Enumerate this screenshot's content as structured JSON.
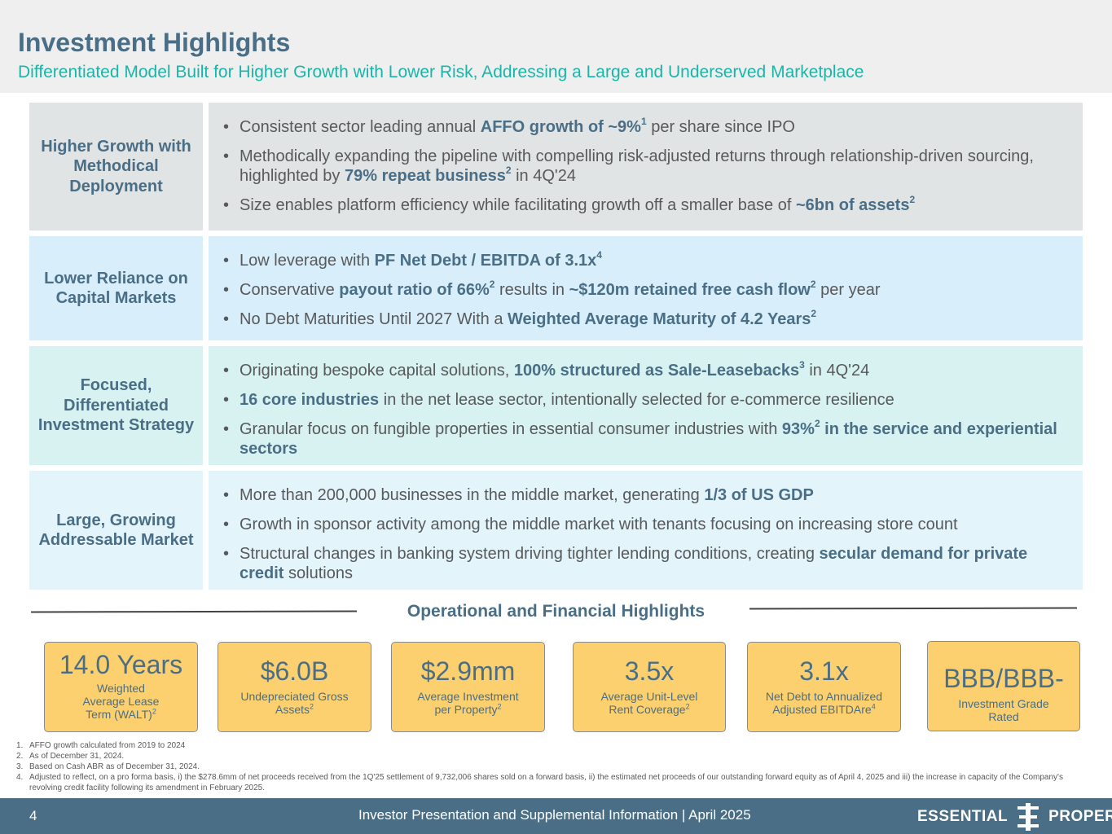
{
  "header": {
    "title": "Investment Highlights",
    "subtitle": "Differentiated Model Built for Higher Growth with Lower Risk, Addressing a Large and Underserved Marketplace"
  },
  "rows": [
    {
      "label": "Higher Growth with Methodical Deployment",
      "bullets": [
        [
          {
            "t": "Consistent sector leading annual "
          },
          {
            "t": "AFFO growth of ~9%",
            "b": true
          },
          {
            "t": "1",
            "sup": true,
            "b": true
          },
          {
            "t": " per share since IPO"
          }
        ],
        [
          {
            "t": "Methodically expanding the pipeline with compelling risk-adjusted returns through relationship-driven sourcing, highlighted by "
          },
          {
            "t": "79% repeat business",
            "b": true
          },
          {
            "t": "2",
            "sup": true,
            "b": true
          },
          {
            "t": " in 4Q'24"
          }
        ],
        [
          {
            "t": "Size enables platform efficiency while facilitating growth off a smaller base of "
          },
          {
            "t": "~6bn of assets",
            "b": true
          },
          {
            "t": "2",
            "sup": true,
            "b": true
          }
        ]
      ]
    },
    {
      "label": "Lower Reliance on Capital Markets",
      "bullets": [
        [
          {
            "t": "Low leverage with "
          },
          {
            "t": "PF Net Debt / EBITDA of 3.1x",
            "b": true
          },
          {
            "t": "4",
            "sup": true,
            "b": true
          }
        ],
        [
          {
            "t": "Conservative "
          },
          {
            "t": "payout ratio of 66%",
            "b": true
          },
          {
            "t": "2",
            "sup": true,
            "b": true
          },
          {
            "t": " results in "
          },
          {
            "t": "~$120m retained free cash flow",
            "b": true
          },
          {
            "t": "2",
            "sup": true,
            "b": true
          },
          {
            "t": " per year"
          }
        ],
        [
          {
            "t": "No Debt Maturities Until 2027 With a "
          },
          {
            "t": "Weighted Average Maturity of 4.2 Years",
            "b": true
          },
          {
            "t": "2",
            "sup": true,
            "b": true
          }
        ]
      ]
    },
    {
      "label": "Focused, Differentiated Investment Strategy",
      "bullets": [
        [
          {
            "t": "Originating bespoke capital solutions, "
          },
          {
            "t": "100% structured as Sale-Leasebacks",
            "b": true
          },
          {
            "t": "3",
            "sup": true,
            "b": true
          },
          {
            "t": " in 4Q'24"
          }
        ],
        [
          {
            "t": "16 core industries",
            "b": true
          },
          {
            "t": " in the net lease sector, intentionally selected for e-commerce resilience"
          }
        ],
        [
          {
            "t": "Granular focus on fungible properties in essential consumer industries with "
          },
          {
            "t": "93%",
            "b": true
          },
          {
            "t": "2",
            "sup": true,
            "b": true
          },
          {
            "t": " in the service and experiential sectors",
            "b": true
          }
        ]
      ]
    },
    {
      "label": "Large, Growing Addressable Market",
      "bullets": [
        [
          {
            "t": "More than 200,000 businesses in the middle market, generating "
          },
          {
            "t": "1/3 of US GDP",
            "b": true
          }
        ],
        [
          {
            "t": "Growth in sponsor activity among the middle market with tenants focusing on increasing store count"
          }
        ],
        [
          {
            "t": "Structural changes in banking system driving tighter lending conditions, creating "
          },
          {
            "t": "secular demand for private credit",
            "b": true
          },
          {
            "t": " solutions"
          }
        ]
      ]
    }
  ],
  "ops": {
    "title": "Operational and Financial Highlights",
    "kpis": [
      {
        "value": "14.0 Years",
        "label": "Weighted Average Lease Term (WALT)",
        "sup": "2"
      },
      {
        "value": "$6.0B",
        "label": "Undepreciated Gross Assets",
        "sup": "2"
      },
      {
        "value": "$2.9mm",
        "label": "Average Investment per Property",
        "sup": "2"
      },
      {
        "value": "3.5x",
        "label": "Average Unit-Level Rent Coverage",
        "sup": "2"
      },
      {
        "value": "3.1x",
        "label": "Net Debt to Annualized Adjusted EBITDAre",
        "sup": "4"
      },
      {
        "value": "BBB/BBB-",
        "label": "Investment Grade Rated",
        "sup": ""
      }
    ]
  },
  "footnotes": [
    {
      "num": "1.",
      "text": "AFFO growth calculated from 2019 to 2024"
    },
    {
      "num": "2.",
      "text": "As of December 31, 2024."
    },
    {
      "num": "3.",
      "text": "Based on Cash ABR as of December 31, 2024."
    },
    {
      "num": "4.",
      "text": "Adjusted to reflect, on a pro forma basis, i) the $278.6mm of net proceeds received from the 1Q'25 settlement of 9,732,006 shares sold on a forward basis, ii) the estimated net proceeds of our outstanding forward equity as of April 4, 2025 and iii) the increase in capacity of the Company's revolving credit facility following its amendment in February 2025."
    }
  ],
  "footer": {
    "page_number": "4",
    "text": "Investor Presentation and Supplemental Information |  April 2025",
    "logo_left": "ESSENTIAL",
    "logo_right": "PROPERTIES"
  },
  "colors": {
    "primary": "#4a6e85",
    "accent": "#19b6a8",
    "kpi_fill": "#fdd06f"
  }
}
